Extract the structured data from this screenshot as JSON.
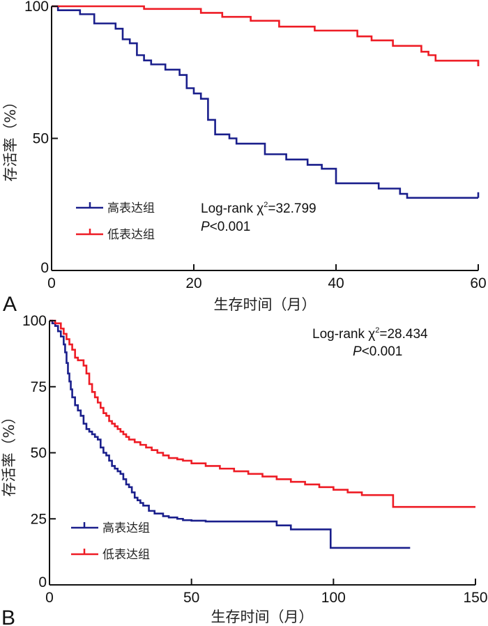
{
  "colors": {
    "high": "#1a1f8c",
    "low": "#ee1c25",
    "axis": "#111111"
  },
  "chart_data": [
    {
      "panel": "A",
      "type": "line",
      "step": true,
      "xlabel": "生存时间（月）",
      "ylabel": "存活率（%）",
      "xlim": [
        0,
        60
      ],
      "ylim": [
        0,
        100
      ],
      "xticks": [
        "0",
        "20",
        "40",
        "60"
      ],
      "yticks": [
        "0",
        "50",
        "100"
      ],
      "xtick_values": [
        0,
        20,
        40,
        60
      ],
      "ytick_values": [
        0,
        50,
        100
      ],
      "legend": {
        "placement": "lower-left",
        "entries": [
          "高表达组",
          "低表达组"
        ]
      },
      "annotation": {
        "line1_prefix": "Log-rank χ",
        "line1_sup": "2",
        "line1_suffix": "=32.799",
        "line2_italic": "P",
        "line2_rest": "<0.001"
      },
      "series": [
        {
          "name": "高表达组",
          "color_key": "high",
          "x": [
            0,
            0.9,
            4,
            6,
            9,
            10,
            11,
            12,
            13,
            14,
            16,
            18,
            19,
            20,
            21,
            22,
            23,
            25,
            26,
            30,
            33,
            36,
            38,
            40,
            46,
            49,
            50,
            60
          ],
          "y": [
            100,
            98.5,
            97,
            93.5,
            91.5,
            87.5,
            86,
            81.5,
            79.5,
            78,
            76,
            74,
            69,
            67,
            65,
            57,
            51.5,
            50,
            48,
            44,
            42,
            40,
            38.5,
            33,
            31,
            29,
            27.5,
            27.5
          ],
          "censor_end": true
        },
        {
          "name": "低表达组",
          "color_key": "low",
          "x": [
            0,
            13,
            21,
            24,
            28,
            32,
            37,
            43,
            45,
            48,
            52,
            53,
            54,
            60
          ],
          "y": [
            100,
            99,
            97.5,
            96,
            94.5,
            92.3,
            90.8,
            88.6,
            87.1,
            85,
            82.8,
            81.5,
            79.4,
            77.3
          ],
          "censor_end": true
        }
      ]
    },
    {
      "panel": "B",
      "type": "line",
      "step": true,
      "xlabel": "生存时间（月）",
      "ylabel": "存活率（%）",
      "xlim": [
        0,
        150
      ],
      "ylim": [
        0,
        100
      ],
      "xticks": [
        "0",
        "50",
        "100",
        "150"
      ],
      "yticks": [
        "0",
        "25",
        "50",
        "75",
        "100"
      ],
      "xtick_values": [
        0,
        50,
        100,
        150
      ],
      "ytick_values": [
        0,
        25,
        50,
        75,
        100
      ],
      "legend": {
        "placement": "lower-left",
        "entries": [
          "高表达组",
          "低表达组"
        ]
      },
      "annotation": {
        "line1_prefix": "Log-rank χ",
        "line1_sup": "2",
        "line1_suffix": "=28.434",
        "line2_italic": "P",
        "line2_rest": "<0.001"
      },
      "series": [
        {
          "name": "高表达组",
          "color_key": "high",
          "x": [
            0,
            1,
            2,
            3,
            4,
            5,
            5.5,
            6,
            6.5,
            7,
            7.5,
            8,
            9,
            10,
            11,
            12,
            13,
            14,
            15,
            16,
            17,
            18,
            19,
            20,
            21,
            22,
            23,
            24,
            25,
            26,
            27,
            28,
            29,
            30,
            31,
            32,
            33,
            35,
            37,
            40,
            42,
            45,
            47,
            50,
            55,
            68,
            80,
            85,
            99,
            127
          ],
          "y": [
            100,
            99,
            98,
            96,
            94,
            91,
            88,
            84,
            80,
            77,
            74,
            71,
            68,
            66,
            64,
            61,
            59,
            58,
            57,
            56,
            55,
            52,
            50,
            49,
            47,
            45,
            44,
            43,
            42,
            40,
            38,
            37,
            35,
            33,
            32,
            31,
            30,
            28,
            27,
            26,
            25.5,
            25,
            24.5,
            24.3,
            24,
            24,
            22.5,
            21,
            14,
            14
          ],
          "censor_end": false
        },
        {
          "name": "低表达组",
          "color_key": "low",
          "x": [
            0,
            2,
            4,
            5,
            6,
            7,
            8,
            9,
            10,
            12,
            13,
            14,
            15,
            16,
            17,
            18,
            19,
            20,
            21,
            22,
            23,
            24,
            25,
            26,
            27,
            28,
            30,
            32,
            34,
            36,
            38,
            40,
            42,
            45,
            47,
            50,
            55,
            60,
            65,
            70,
            75,
            80,
            85,
            90,
            95,
            100,
            105,
            110,
            121,
            150
          ],
          "y": [
            100,
            99,
            97,
            95,
            93,
            91,
            89,
            86,
            85,
            83,
            80,
            76,
            73,
            71,
            69,
            67,
            65,
            64,
            62,
            61,
            60,
            59,
            58,
            57,
            56,
            55,
            54,
            53,
            52,
            51,
            50,
            49,
            48,
            47.5,
            47,
            46,
            45,
            44,
            43,
            42,
            41,
            40,
            39,
            38,
            37,
            36,
            35,
            34,
            29.5,
            29.5
          ],
          "censor_end": false
        }
      ]
    }
  ]
}
